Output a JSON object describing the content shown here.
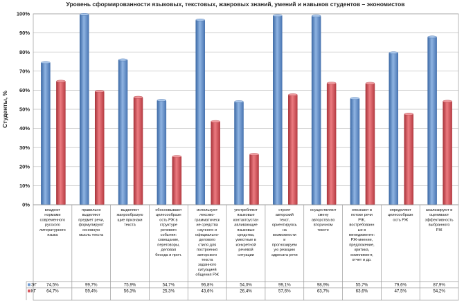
{
  "colors": {
    "series1": "#6f9bd2",
    "series1_dark": "#3d6aa6",
    "series2": "#d9595f",
    "series2_dark": "#a8333a"
  },
  "chart_data": {
    "type": "bar",
    "title": "Уровень сформированности языковых, текстовых, жанровых знаний, умений и навыков студентов – экономистов",
    "ylabel": "Студенты, %",
    "ylim": [
      0,
      100
    ],
    "yticks": [
      "0%",
      "10%",
      "20%",
      "30%",
      "40%",
      "50%",
      "60%",
      "70%",
      "80%",
      "90%",
      "100%"
    ],
    "grid": true,
    "legend": "table-below",
    "categories": [
      [
        "владеют",
        "нормами",
        "современного",
        "русского",
        "литературного",
        "языка"
      ],
      [
        "правильно",
        "выделяют",
        "предмет речи,",
        "формулируют",
        "основную",
        "мысль текста"
      ],
      [
        "выделяют",
        "жанрообразую",
        "щие признаки",
        "текста"
      ],
      [
        "обосновывают",
        "целесообразн",
        "ость РЖ в",
        "структуре",
        "речевого",
        "события:",
        "совещание,",
        "переговоры,",
        "деловая",
        "беседа и проч."
      ],
      [
        "используют",
        "лексико-",
        "грамматическ",
        "ие средства",
        "научного и",
        "официально-",
        "делового",
        "стиля для",
        "построения",
        "авторского",
        "текста",
        "заданного",
        "ситуацией",
        "общения РЖ"
      ],
      [
        "употребляют",
        "языковые",
        "контактоустан",
        "авливающие",
        "языковые",
        "средства,",
        "уместные в",
        "конкретной",
        "речевой",
        "ситуации"
      ],
      [
        "строят",
        "авторский",
        "текст,",
        "ориентируясь",
        "на",
        "возможности",
        "и",
        "прогнозируем",
        "ую реакцию",
        "адресата речи"
      ],
      [
        "осуществляют",
        "смену",
        "авторства во",
        "вторичном",
        "тексте"
      ],
      [
        "опознают в",
        "потоке речи",
        "РЖ,",
        "востребованн",
        "ые в",
        "менеджменте:",
        "РЖ-мнение,",
        "предложение,",
        "критика,",
        "комплимент,",
        "отчет и др."
      ],
      [
        "определяют",
        "целесообразн",
        "ость РЖ"
      ],
      [
        "анализируют и",
        "оценивают",
        "эффективность",
        "выбранного",
        "РЖ"
      ]
    ],
    "series": [
      {
        "name": "ЭГ",
        "values": [
          74.5,
          99.7,
          75.9,
          54.7,
          96.8,
          54.0,
          99.1,
          98.9,
          55.7,
          79.6,
          87.9
        ],
        "labels": [
          "74,5%",
          "99,7%",
          "75,9%",
          "54,7%",
          "96,8%",
          "54,0%",
          "99,1%",
          "98,9%",
          "55,7%",
          "79,6%",
          "87,9%"
        ]
      },
      {
        "name": "КГ",
        "values": [
          64.7,
          59.4,
          56.3,
          25.3,
          43.6,
          26.4,
          57.6,
          63.7,
          63.6,
          47.5,
          54.2
        ],
        "labels": [
          "64,7%",
          "59,4%",
          "56,3%",
          "25,3%",
          "43,6%",
          "26,4%",
          "57,6%",
          "63,7%",
          "63,6%",
          "47,5%",
          "54,2%"
        ]
      }
    ]
  }
}
